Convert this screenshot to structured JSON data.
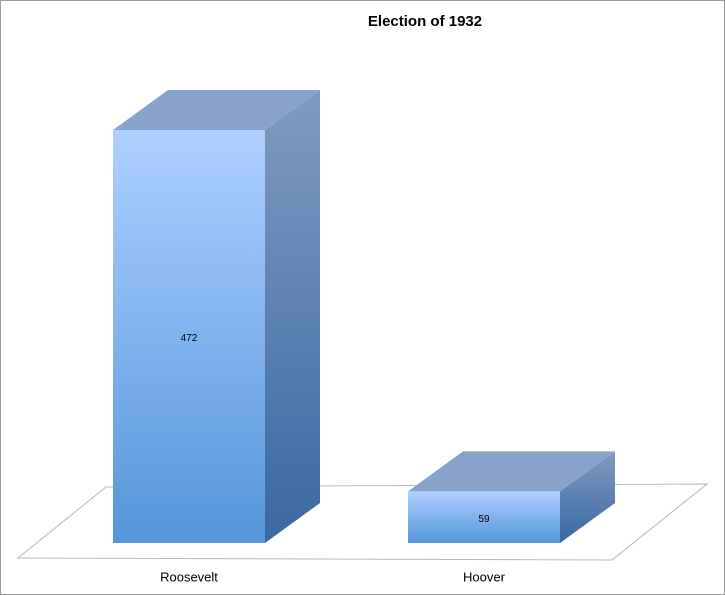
{
  "chart_data": {
    "type": "bar",
    "title": "Election of 1932",
    "categories": [
      "Roosevelt",
      "Hoover"
    ],
    "values": [
      472,
      59
    ]
  }
}
